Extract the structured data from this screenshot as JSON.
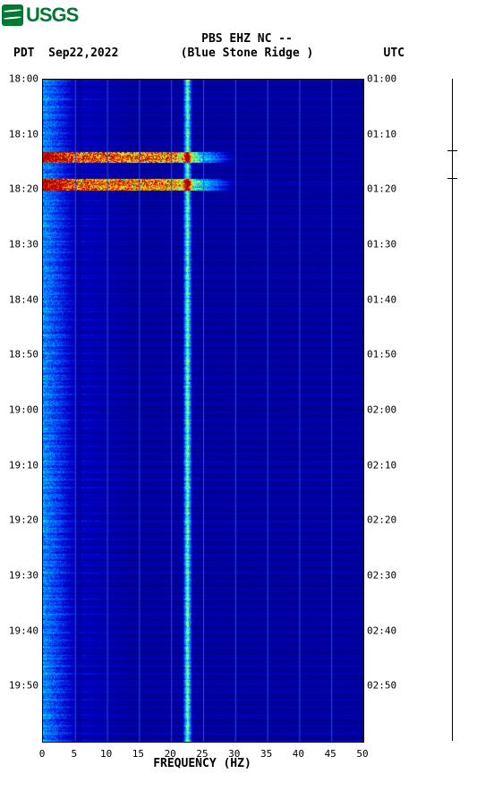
{
  "logo_text": "USGS",
  "channel": "PBS EHZ NC --",
  "station_name": "(Blue Stone Ridge )",
  "left_tz": "PDT",
  "date": "Sep22,2022",
  "right_tz": "UTC",
  "x_axis_label": "FREQUENCY (HZ)",
  "chart": {
    "freq_min": 0,
    "freq_max": 50,
    "x_ticks": [
      0,
      5,
      10,
      15,
      20,
      25,
      30,
      35,
      40,
      45,
      50
    ],
    "y_left_ticks": [
      "18:00",
      "18:10",
      "18:20",
      "18:30",
      "18:40",
      "18:50",
      "19:00",
      "19:10",
      "19:20",
      "19:30",
      "19:40",
      "19:50"
    ],
    "y_right_ticks": [
      "01:00",
      "01:10",
      "01:20",
      "01:30",
      "01:40",
      "01:50",
      "02:00",
      "02:10",
      "02:20",
      "02:30",
      "02:40",
      "02:50"
    ],
    "y_minutes": 120,
    "background_color": "#0414a0",
    "grid_color": "#2e4de0",
    "colormap": [
      [
        0.0,
        "#00008b"
      ],
      [
        0.15,
        "#0000cd"
      ],
      [
        0.3,
        "#0060ff"
      ],
      [
        0.45,
        "#00c0ff"
      ],
      [
        0.55,
        "#40ffbf"
      ],
      [
        0.65,
        "#c0ff40"
      ],
      [
        0.78,
        "#ffc000"
      ],
      [
        0.9,
        "#ff4000"
      ],
      [
        1.0,
        "#b00000"
      ]
    ],
    "persistent_line_freq": 22.5,
    "persistent_line_intensity": 0.65,
    "low_freq_noise_max_hz": 6,
    "low_freq_noise_intensity": 0.4,
    "event_bands": [
      {
        "minute": 13,
        "width": 2,
        "intensity": 0.95,
        "freq_end": 30
      },
      {
        "minute": 18,
        "width": 2,
        "intensity": 0.92,
        "freq_end": 30
      }
    ],
    "side_marks": [
      13,
      18
    ]
  }
}
